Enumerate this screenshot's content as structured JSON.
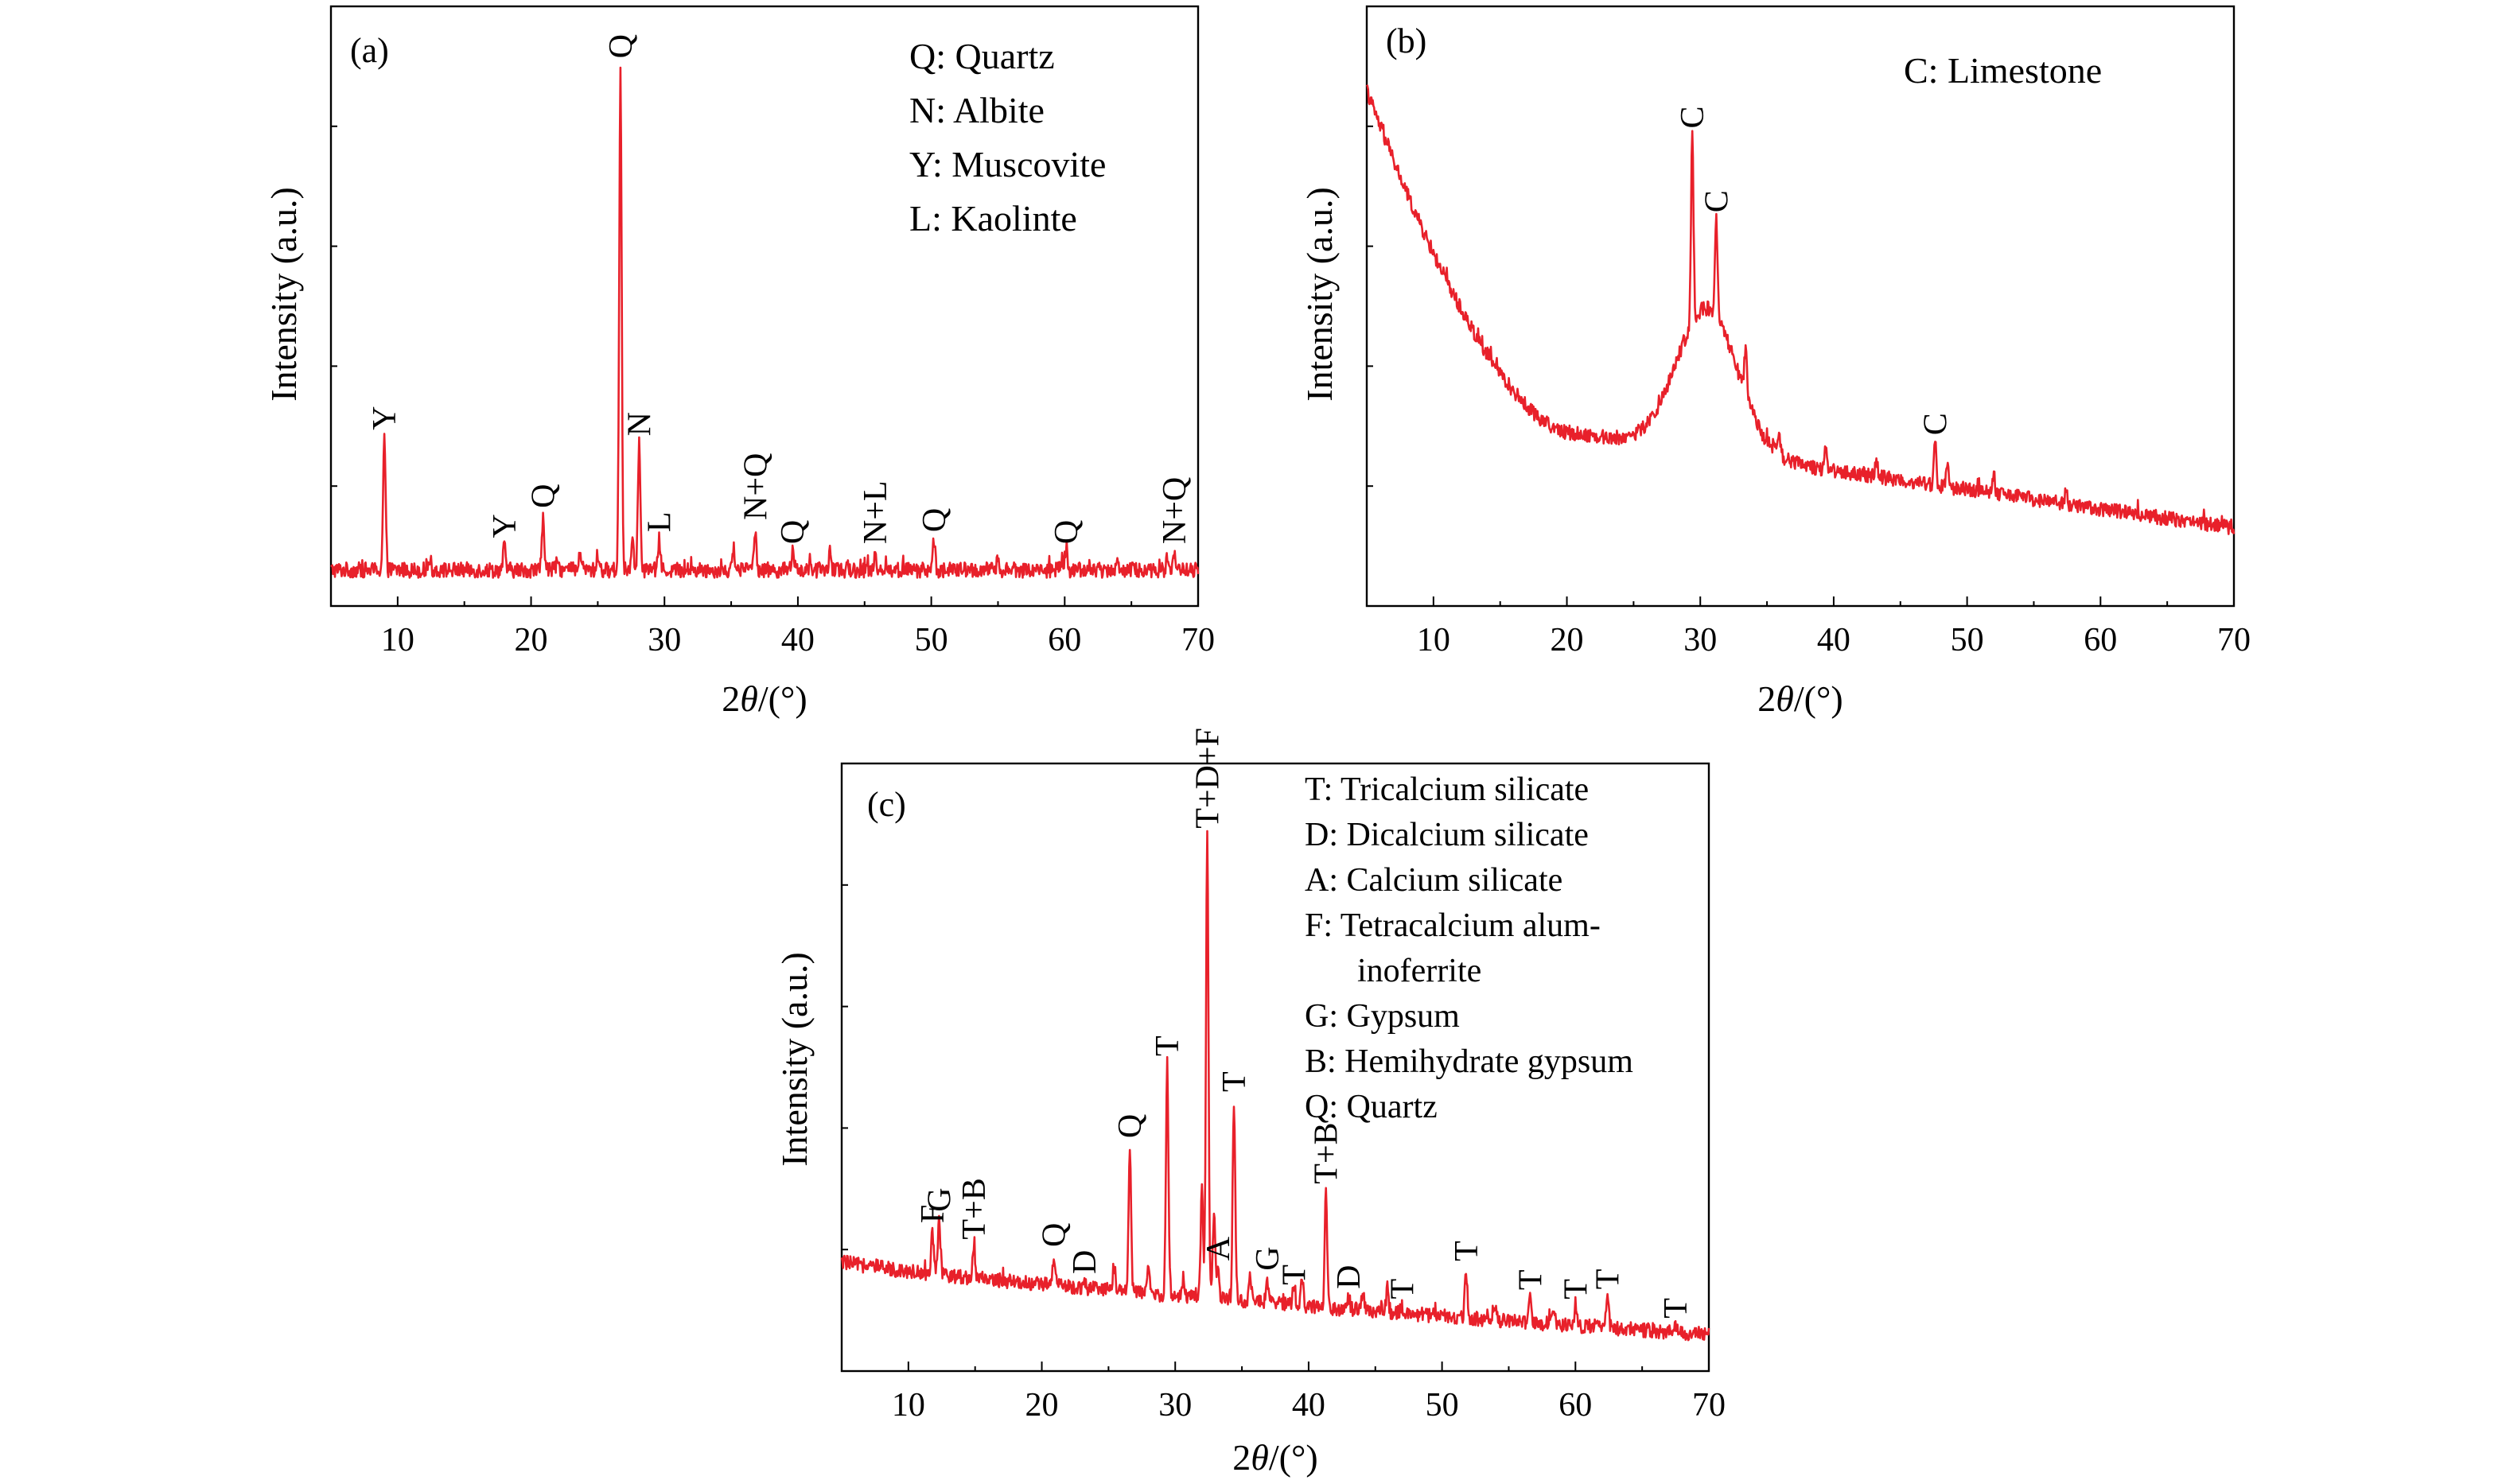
{
  "colors": {
    "trace": "#e8202a",
    "axis": "#000000",
    "background": "#ffffff"
  },
  "chart_data": [
    {
      "type": "line",
      "panel_label": "(a)",
      "xlabel_prefix": "2",
      "xlabel_theta": "θ",
      "xlabel_suffix": "/(°)",
      "ylabel": "Intensity (a.u.)",
      "xlim": [
        5,
        70
      ],
      "ylim": [
        0,
        100
      ],
      "xticks": [
        10,
        20,
        30,
        40,
        50,
        60,
        70
      ],
      "baseline": 6,
      "noise": 1.3,
      "legend": [
        "Q: Quartz",
        "N: Albite",
        "Y: Muscovite",
        "L: Kaolinte"
      ],
      "peaks": [
        {
          "x": 9.0,
          "h": 22,
          "label": "Y"
        },
        {
          "x": 18.0,
          "h": 4,
          "label": "Y"
        },
        {
          "x": 20.9,
          "h": 9,
          "label": "Q"
        },
        {
          "x": 26.7,
          "h": 84,
          "label": "Q"
        },
        {
          "x": 28.1,
          "h": 21,
          "label": "N"
        },
        {
          "x": 29.6,
          "h": 5,
          "label": "L"
        },
        {
          "x": 36.8,
          "h": 7,
          "label": "N+Q"
        },
        {
          "x": 39.6,
          "h": 3,
          "label": "Q"
        },
        {
          "x": 45.8,
          "h": 3,
          "label": "N+L"
        },
        {
          "x": 50.2,
          "h": 5,
          "label": "Q"
        },
        {
          "x": 60.1,
          "h": 3,
          "label": "Q"
        },
        {
          "x": 68.2,
          "h": 3,
          "label": "N+Q"
        }
      ],
      "minor_peaks": [
        {
          "x": 12.4,
          "h": 2
        },
        {
          "x": 22.0,
          "h": 2.5
        },
        {
          "x": 23.7,
          "h": 3
        },
        {
          "x": 25.0,
          "h": 2.5
        },
        {
          "x": 27.6,
          "h": 6
        },
        {
          "x": 35.2,
          "h": 3
        },
        {
          "x": 42.4,
          "h": 3
        },
        {
          "x": 55.0,
          "h": 2
        },
        {
          "x": 59.8,
          "h": 2
        },
        {
          "x": 63.9,
          "h": 1.5
        },
        {
          "x": 67.7,
          "h": 2
        }
      ]
    },
    {
      "type": "line",
      "panel_label": "(b)",
      "xlabel_prefix": "2",
      "xlabel_theta": "θ",
      "xlabel_suffix": "/(°)",
      "ylabel": "Intensity (a.u.)",
      "xlim": [
        5,
        70
      ],
      "ylim": [
        0,
        100
      ],
      "xticks": [
        10,
        20,
        30,
        40,
        50,
        60,
        70
      ],
      "noise": 1.2,
      "background": {
        "min_x": 20,
        "min_y": 29,
        "left_y": 86,
        "right_y": 13,
        "hump_x": 30.5,
        "hump_h": 24,
        "hump_w": 3.2
      },
      "legend": [
        "C: Limestone"
      ],
      "peaks": [
        {
          "x": 29.4,
          "h": 31,
          "label": "C"
        },
        {
          "x": 31.2,
          "h": 16,
          "label": "C"
        },
        {
          "x": 47.6,
          "h": 7,
          "label": "C"
        }
      ],
      "minor_peaks": [
        {
          "x": 33.4,
          "h": 8
        },
        {
          "x": 35.9,
          "h": 4
        },
        {
          "x": 39.4,
          "h": 4
        },
        {
          "x": 43.2,
          "h": 3
        },
        {
          "x": 48.5,
          "h": 4
        },
        {
          "x": 52.0,
          "h": 3
        },
        {
          "x": 57.4,
          "h": 2
        }
      ]
    },
    {
      "type": "line",
      "panel_label": "(c)",
      "xlabel_prefix": "2",
      "xlabel_theta": "θ",
      "xlabel_suffix": "/(°)",
      "ylabel": "Intensity (a.u.)",
      "xlim": [
        5,
        70
      ],
      "ylim": [
        0,
        100
      ],
      "xticks": [
        10,
        20,
        30,
        40,
        50,
        60,
        70
      ],
      "noise": 1.2,
      "background": {
        "start_y": 18,
        "end_y": 6
      },
      "legend": [
        "T: Tricalcium silicate",
        "D: Dicalcium silicate",
        "A: Calcium silicate",
        "F: Tetracalcium alum-",
        "inoferrite",
        "G: Gypsum",
        "B: Hemihydrate gypsum",
        "Q: Quartz"
      ],
      "peaks": [
        {
          "x": 11.8,
          "h": 7,
          "label": "F"
        },
        {
          "x": 12.3,
          "h": 9,
          "label": "G"
        },
        {
          "x": 14.9,
          "h": 5,
          "label": "T+B"
        },
        {
          "x": 20.9,
          "h": 5,
          "label": "Q"
        },
        {
          "x": 23.2,
          "h": 1,
          "label": "D"
        },
        {
          "x": 26.6,
          "h": 24,
          "label": "Q"
        },
        {
          "x": 29.4,
          "h": 38,
          "label": "T"
        },
        {
          "x": 32.4,
          "h": 76,
          "label": "T+D+F"
        },
        {
          "x": 33.2,
          "h": 5,
          "label": "A"
        },
        {
          "x": 34.4,
          "h": 33,
          "label": "T"
        },
        {
          "x": 36.9,
          "h": 4,
          "label": "G"
        },
        {
          "x": 38.9,
          "h": 2,
          "label": "T"
        },
        {
          "x": 41.3,
          "h": 19,
          "label": "T+B"
        },
        {
          "x": 43.0,
          "h": 2,
          "label": "D"
        },
        {
          "x": 47.0,
          "h": 1,
          "label": "T"
        },
        {
          "x": 51.8,
          "h": 8,
          "label": "T"
        },
        {
          "x": 56.6,
          "h": 4,
          "label": "T"
        },
        {
          "x": 60.0,
          "h": 3,
          "label": "T"
        },
        {
          "x": 62.4,
          "h": 5,
          "label": "T"
        },
        {
          "x": 67.5,
          "h": 1,
          "label": "T"
        }
      ],
      "minor_peaks": [
        {
          "x": 25.4,
          "h": 4
        },
        {
          "x": 28.0,
          "h": 4
        },
        {
          "x": 30.6,
          "h": 3
        },
        {
          "x": 32.0,
          "h": 18
        },
        {
          "x": 32.9,
          "h": 14
        },
        {
          "x": 35.6,
          "h": 5
        },
        {
          "x": 39.5,
          "h": 5
        },
        {
          "x": 44.1,
          "h": 2
        },
        {
          "x": 45.9,
          "h": 4
        },
        {
          "x": 54.0,
          "h": 2
        },
        {
          "x": 58.4,
          "h": 2
        }
      ]
    }
  ]
}
